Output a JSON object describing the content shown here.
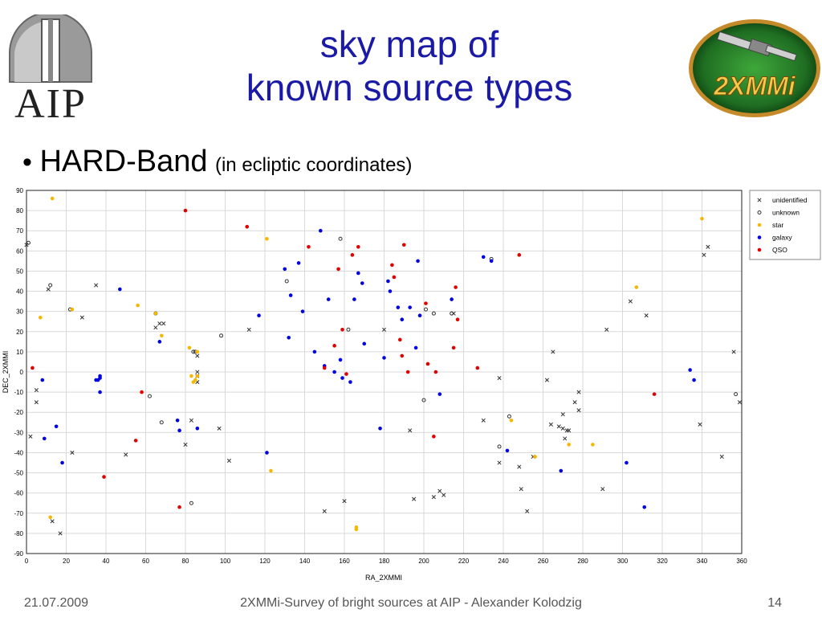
{
  "title": {
    "line1": "sky map of",
    "line2": "known source types"
  },
  "logos": {
    "left_text": "AIP",
    "right_text": "2XMMi"
  },
  "bullet": {
    "main": "HARD-Band",
    "sub": "(in ecliptic coordinates)"
  },
  "footer": {
    "date": "21.07.2009",
    "center": "2XMMi-Survey of bright sources at AIP - Alexander Kolodzig",
    "page": "14"
  },
  "colors": {
    "title": "#1a1aa6",
    "star": "#f5b800",
    "galaxy": "#0000e0",
    "qso": "#e00000",
    "marker": "#333333"
  },
  "chart_data": {
    "type": "scatter",
    "xlabel": "RA_2XMMI",
    "ylabel": "DEC_2XMMI",
    "xlim": [
      0,
      360
    ],
    "ylim": [
      -90,
      90
    ],
    "xticks": [
      0,
      20,
      40,
      60,
      80,
      100,
      120,
      140,
      160,
      180,
      200,
      220,
      240,
      260,
      280,
      300,
      320,
      340,
      360
    ],
    "yticks": [
      90,
      80,
      70,
      60,
      50,
      40,
      30,
      20,
      10,
      0,
      -10,
      -20,
      -30,
      -40,
      -50,
      -60,
      -70,
      -80,
      -90
    ],
    "grid": true,
    "legend_position": "top-right",
    "series": [
      {
        "name": "unidentified",
        "marker": "x",
        "color": "#333333",
        "points": [
          [
            0,
            63
          ],
          [
            5,
            -9
          ],
          [
            5,
            -15
          ],
          [
            2,
            -32
          ],
          [
            11,
            41
          ],
          [
            13,
            -74
          ],
          [
            17,
            -80
          ],
          [
            23,
            -40
          ],
          [
            28,
            27
          ],
          [
            35,
            43
          ],
          [
            50,
            -41
          ],
          [
            65,
            22
          ],
          [
            67,
            24
          ],
          [
            69,
            24
          ],
          [
            80,
            -36
          ],
          [
            83,
            -24
          ],
          [
            86,
            -2
          ],
          [
            86,
            8
          ],
          [
            86,
            -5
          ],
          [
            86,
            0
          ],
          [
            97,
            -28
          ],
          [
            102,
            -44
          ],
          [
            112,
            21
          ],
          [
            150,
            -69
          ],
          [
            160,
            -64
          ],
          [
            180,
            21
          ],
          [
            193,
            -29
          ],
          [
            195,
            -63
          ],
          [
            205,
            -62
          ],
          [
            208,
            -59
          ],
          [
            210,
            -61
          ],
          [
            215,
            29
          ],
          [
            230,
            -24
          ],
          [
            238,
            -3
          ],
          [
            238,
            -45
          ],
          [
            248,
            -47
          ],
          [
            249,
            -58
          ],
          [
            252,
            -69
          ],
          [
            255,
            -42
          ],
          [
            262,
            -4
          ],
          [
            264,
            -26
          ],
          [
            265,
            10
          ],
          [
            268,
            -27
          ],
          [
            270,
            -28
          ],
          [
            270,
            -21
          ],
          [
            271,
            -33
          ],
          [
            272,
            -29
          ],
          [
            273,
            -29
          ],
          [
            276,
            -15
          ],
          [
            278,
            -10
          ],
          [
            278,
            -19
          ],
          [
            290,
            -58
          ],
          [
            292,
            21
          ],
          [
            304,
            35
          ],
          [
            312,
            28
          ],
          [
            339,
            -26
          ],
          [
            341,
            58
          ],
          [
            343,
            62
          ],
          [
            350,
            -42
          ],
          [
            356,
            10
          ],
          [
            359,
            -15
          ]
        ]
      },
      {
        "name": "unknown",
        "marker": "o",
        "color": "#333333",
        "points": [
          [
            1,
            64
          ],
          [
            12,
            43
          ],
          [
            22,
            31
          ],
          [
            62,
            -12
          ],
          [
            65,
            29
          ],
          [
            68,
            -25
          ],
          [
            83,
            -65
          ],
          [
            84,
            10
          ],
          [
            85,
            10
          ],
          [
            98,
            18
          ],
          [
            131,
            45
          ],
          [
            158,
            66
          ],
          [
            162,
            21
          ],
          [
            200,
            -14
          ],
          [
            201,
            31
          ],
          [
            205,
            29
          ],
          [
            214,
            29
          ],
          [
            234,
            56
          ],
          [
            238,
            -37
          ],
          [
            243,
            -22
          ],
          [
            357,
            -11
          ]
        ]
      },
      {
        "name": "star",
        "marker": "dot",
        "color": "#f5b800",
        "points": [
          [
            7,
            27
          ],
          [
            12,
            -72
          ],
          [
            13,
            86
          ],
          [
            23,
            31
          ],
          [
            56,
            33
          ],
          [
            65,
            29
          ],
          [
            68,
            18
          ],
          [
            82,
            12
          ],
          [
            83,
            -2
          ],
          [
            84,
            -5
          ],
          [
            85,
            -4
          ],
          [
            86,
            -2
          ],
          [
            86,
            10
          ],
          [
            121,
            66
          ],
          [
            123,
            -49
          ],
          [
            166,
            -78
          ],
          [
            166,
            -77
          ],
          [
            244,
            -24
          ],
          [
            256,
            -42
          ],
          [
            273,
            -36
          ],
          [
            285,
            -36
          ],
          [
            307,
            42
          ],
          [
            340,
            76
          ]
        ]
      },
      {
        "name": "galaxy",
        "marker": "dot",
        "color": "#0000e0",
        "points": [
          [
            8,
            -4
          ],
          [
            9,
            -33
          ],
          [
            15,
            -27
          ],
          [
            18,
            -45
          ],
          [
            35,
            -4
          ],
          [
            36,
            -4
          ],
          [
            37,
            -3
          ],
          [
            37,
            -2
          ],
          [
            37,
            -10
          ],
          [
            47,
            41
          ],
          [
            67,
            15
          ],
          [
            76,
            -24
          ],
          [
            77,
            -29
          ],
          [
            86,
            -28
          ],
          [
            117,
            28
          ],
          [
            121,
            -40
          ],
          [
            130,
            51
          ],
          [
            132,
            17
          ],
          [
            133,
            38
          ],
          [
            137,
            54
          ],
          [
            139,
            30
          ],
          [
            145,
            10
          ],
          [
            148,
            70
          ],
          [
            150,
            3
          ],
          [
            152,
            36
          ],
          [
            155,
            0
          ],
          [
            158,
            6
          ],
          [
            159,
            -3
          ],
          [
            163,
            -5
          ],
          [
            165,
            36
          ],
          [
            167,
            49
          ],
          [
            169,
            44
          ],
          [
            170,
            14
          ],
          [
            178,
            -28
          ],
          [
            180,
            7
          ],
          [
            182,
            45
          ],
          [
            183,
            40
          ],
          [
            187,
            32
          ],
          [
            189,
            26
          ],
          [
            193,
            32
          ],
          [
            196,
            12
          ],
          [
            197,
            55
          ],
          [
            198,
            28
          ],
          [
            208,
            -11
          ],
          [
            214,
            36
          ],
          [
            230,
            57
          ],
          [
            234,
            55
          ],
          [
            242,
            -39
          ],
          [
            269,
            -49
          ],
          [
            302,
            -45
          ],
          [
            311,
            -67
          ],
          [
            334,
            1
          ],
          [
            336,
            -4
          ]
        ]
      },
      {
        "name": "QSO",
        "marker": "dot",
        "color": "#e00000",
        "points": [
          [
            3,
            2
          ],
          [
            39,
            -52
          ],
          [
            55,
            -34
          ],
          [
            58,
            -10
          ],
          [
            77,
            -67
          ],
          [
            80,
            80
          ],
          [
            111,
            72
          ],
          [
            142,
            62
          ],
          [
            150,
            2
          ],
          [
            155,
            13
          ],
          [
            157,
            51
          ],
          [
            159,
            21
          ],
          [
            161,
            -1
          ],
          [
            164,
            58
          ],
          [
            167,
            62
          ],
          [
            184,
            53
          ],
          [
            185,
            47
          ],
          [
            188,
            16
          ],
          [
            189,
            8
          ],
          [
            190,
            63
          ],
          [
            192,
            0
          ],
          [
            201,
            34
          ],
          [
            202,
            4
          ],
          [
            205,
            -32
          ],
          [
            206,
            0
          ],
          [
            215,
            12
          ],
          [
            216,
            42
          ],
          [
            217,
            26
          ],
          [
            227,
            2
          ],
          [
            248,
            58
          ],
          [
            316,
            -11
          ]
        ]
      }
    ]
  }
}
